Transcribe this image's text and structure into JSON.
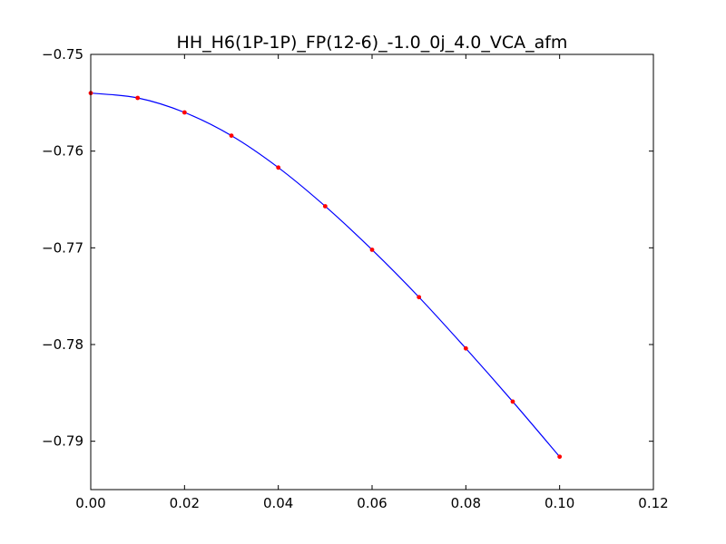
{
  "chart_data": {
    "type": "line",
    "title": "HH_H6(1P-1P)_FP(12-6)_-1.0_0j_4.0_VCA_afm",
    "xlabel": "",
    "ylabel": "",
    "xlim": [
      0.0,
      0.12
    ],
    "ylim": [
      -0.795,
      -0.75
    ],
    "grid": false,
    "x_ticks": [
      {
        "value": 0.0,
        "label": "0.00"
      },
      {
        "value": 0.02,
        "label": "0.02"
      },
      {
        "value": 0.04,
        "label": "0.04"
      },
      {
        "value": 0.06,
        "label": "0.06"
      },
      {
        "value": 0.08,
        "label": "0.08"
      },
      {
        "value": 0.1,
        "label": "0.10"
      },
      {
        "value": 0.12,
        "label": "0.12"
      }
    ],
    "y_ticks": [
      {
        "value": -0.75,
        "label": "−0.75"
      },
      {
        "value": -0.76,
        "label": "−0.76"
      },
      {
        "value": -0.77,
        "label": "−0.77"
      },
      {
        "value": -0.78,
        "label": "−0.78"
      },
      {
        "value": -0.79,
        "label": "−0.79"
      }
    ],
    "series": [
      {
        "style": "line",
        "color": "#0000ff",
        "x": [
          0.0,
          0.01,
          0.02,
          0.03,
          0.04,
          0.05,
          0.06,
          0.07,
          0.08,
          0.09,
          0.1
        ],
        "y": [
          -0.754,
          -0.7545,
          -0.756,
          -0.7584,
          -0.7617,
          -0.7657,
          -0.7702,
          -0.7751,
          -0.7804,
          -0.7859,
          -0.7916
        ]
      },
      {
        "style": "markers",
        "color": "#ff0000",
        "x": [
          0.0,
          0.01,
          0.02,
          0.03,
          0.04,
          0.05,
          0.06,
          0.07,
          0.08,
          0.09,
          0.1
        ],
        "y": [
          -0.754,
          -0.7545,
          -0.756,
          -0.7584,
          -0.7617,
          -0.7657,
          -0.7702,
          -0.7751,
          -0.7804,
          -0.7859,
          -0.7916
        ]
      }
    ]
  }
}
